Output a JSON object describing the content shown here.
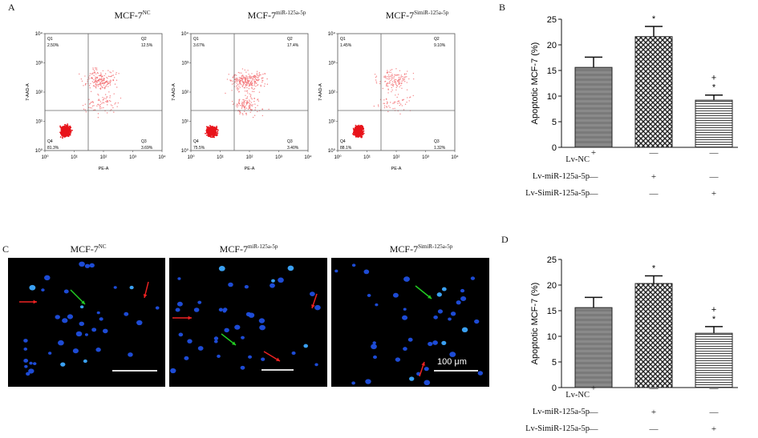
{
  "panels": {
    "A": {
      "letter": "A",
      "plots": [
        {
          "title_base": "MCF-7",
          "title_sup": "NC",
          "q": [
            "2.50%",
            "12.5%",
            "3.69%",
            "81.3%"
          ]
        },
        {
          "title_base": "MCF-7",
          "title_sup": "miR-125a-5p",
          "q": [
            "3.67%",
            "17.4%",
            "3.40%",
            "75.5%"
          ]
        },
        {
          "title_base": "MCF-7",
          "title_sup": "SimiR-125a-5p",
          "q": [
            "1.45%",
            "9.10%",
            "1.32%",
            "88.1%"
          ]
        }
      ],
      "quadrant_labels": [
        "Q1",
        "Q2",
        "Q3",
        "Q4"
      ],
      "ylabel": "7-AAD-A",
      "xlabel": "PE-A",
      "ticks": [
        "10^0",
        "10^1",
        "10^2",
        "10^3",
        "10^4"
      ]
    },
    "B": {
      "letter": "B",
      "chart_data": {
        "type": "bar",
        "ylabel": "Apoptotic MCF-7 (%)",
        "ylim": [
          0,
          25
        ],
        "yticks": [
          "0",
          "5",
          "10",
          "15",
          "20",
          "25"
        ],
        "values": [
          15.6,
          21.6,
          9.2
        ],
        "errors": [
          2.0,
          2.0,
          1.0
        ],
        "annotations": [
          [],
          [
            "*"
          ],
          [
            "+",
            "*"
          ]
        ]
      },
      "rows": [
        {
          "label": "Lv-NC",
          "syms": [
            "+",
            "—",
            "—"
          ]
        },
        {
          "label": "Lv-miR-125a-5p",
          "syms": [
            "—",
            "+",
            "—"
          ]
        },
        {
          "label": "Lv-SimiR-125a-5p",
          "syms": [
            "—",
            "—",
            "+"
          ]
        }
      ]
    },
    "C": {
      "letter": "C",
      "images": [
        {
          "title_base": "MCF-7",
          "title_sup": "NC"
        },
        {
          "title_base": "MCF-7",
          "title_sup": "miR-125a-5p"
        },
        {
          "title_base": "MCF-7",
          "title_sup": "SimiR-125a-5p"
        }
      ],
      "scale_label": "100 μm"
    },
    "D": {
      "letter": "D",
      "chart_data": {
        "type": "bar",
        "ylabel": "Apoptotic MCF-7 (%)",
        "ylim": [
          0,
          25
        ],
        "yticks": [
          "0",
          "5",
          "10",
          "15",
          "20",
          "25"
        ],
        "values": [
          15.6,
          20.3,
          10.6
        ],
        "errors": [
          2.0,
          1.5,
          1.3
        ],
        "annotations": [
          [],
          [
            "*"
          ],
          [
            "+",
            "*"
          ]
        ]
      },
      "rows": [
        {
          "label": "Lv-NC",
          "syms": [
            "+",
            "—",
            "—"
          ]
        },
        {
          "label": "Lv-miR-125a-5p",
          "syms": [
            "—",
            "+",
            "—"
          ]
        },
        {
          "label": "Lv-SimiR-125a-5p",
          "syms": [
            "—",
            "—",
            "+"
          ]
        }
      ]
    }
  }
}
